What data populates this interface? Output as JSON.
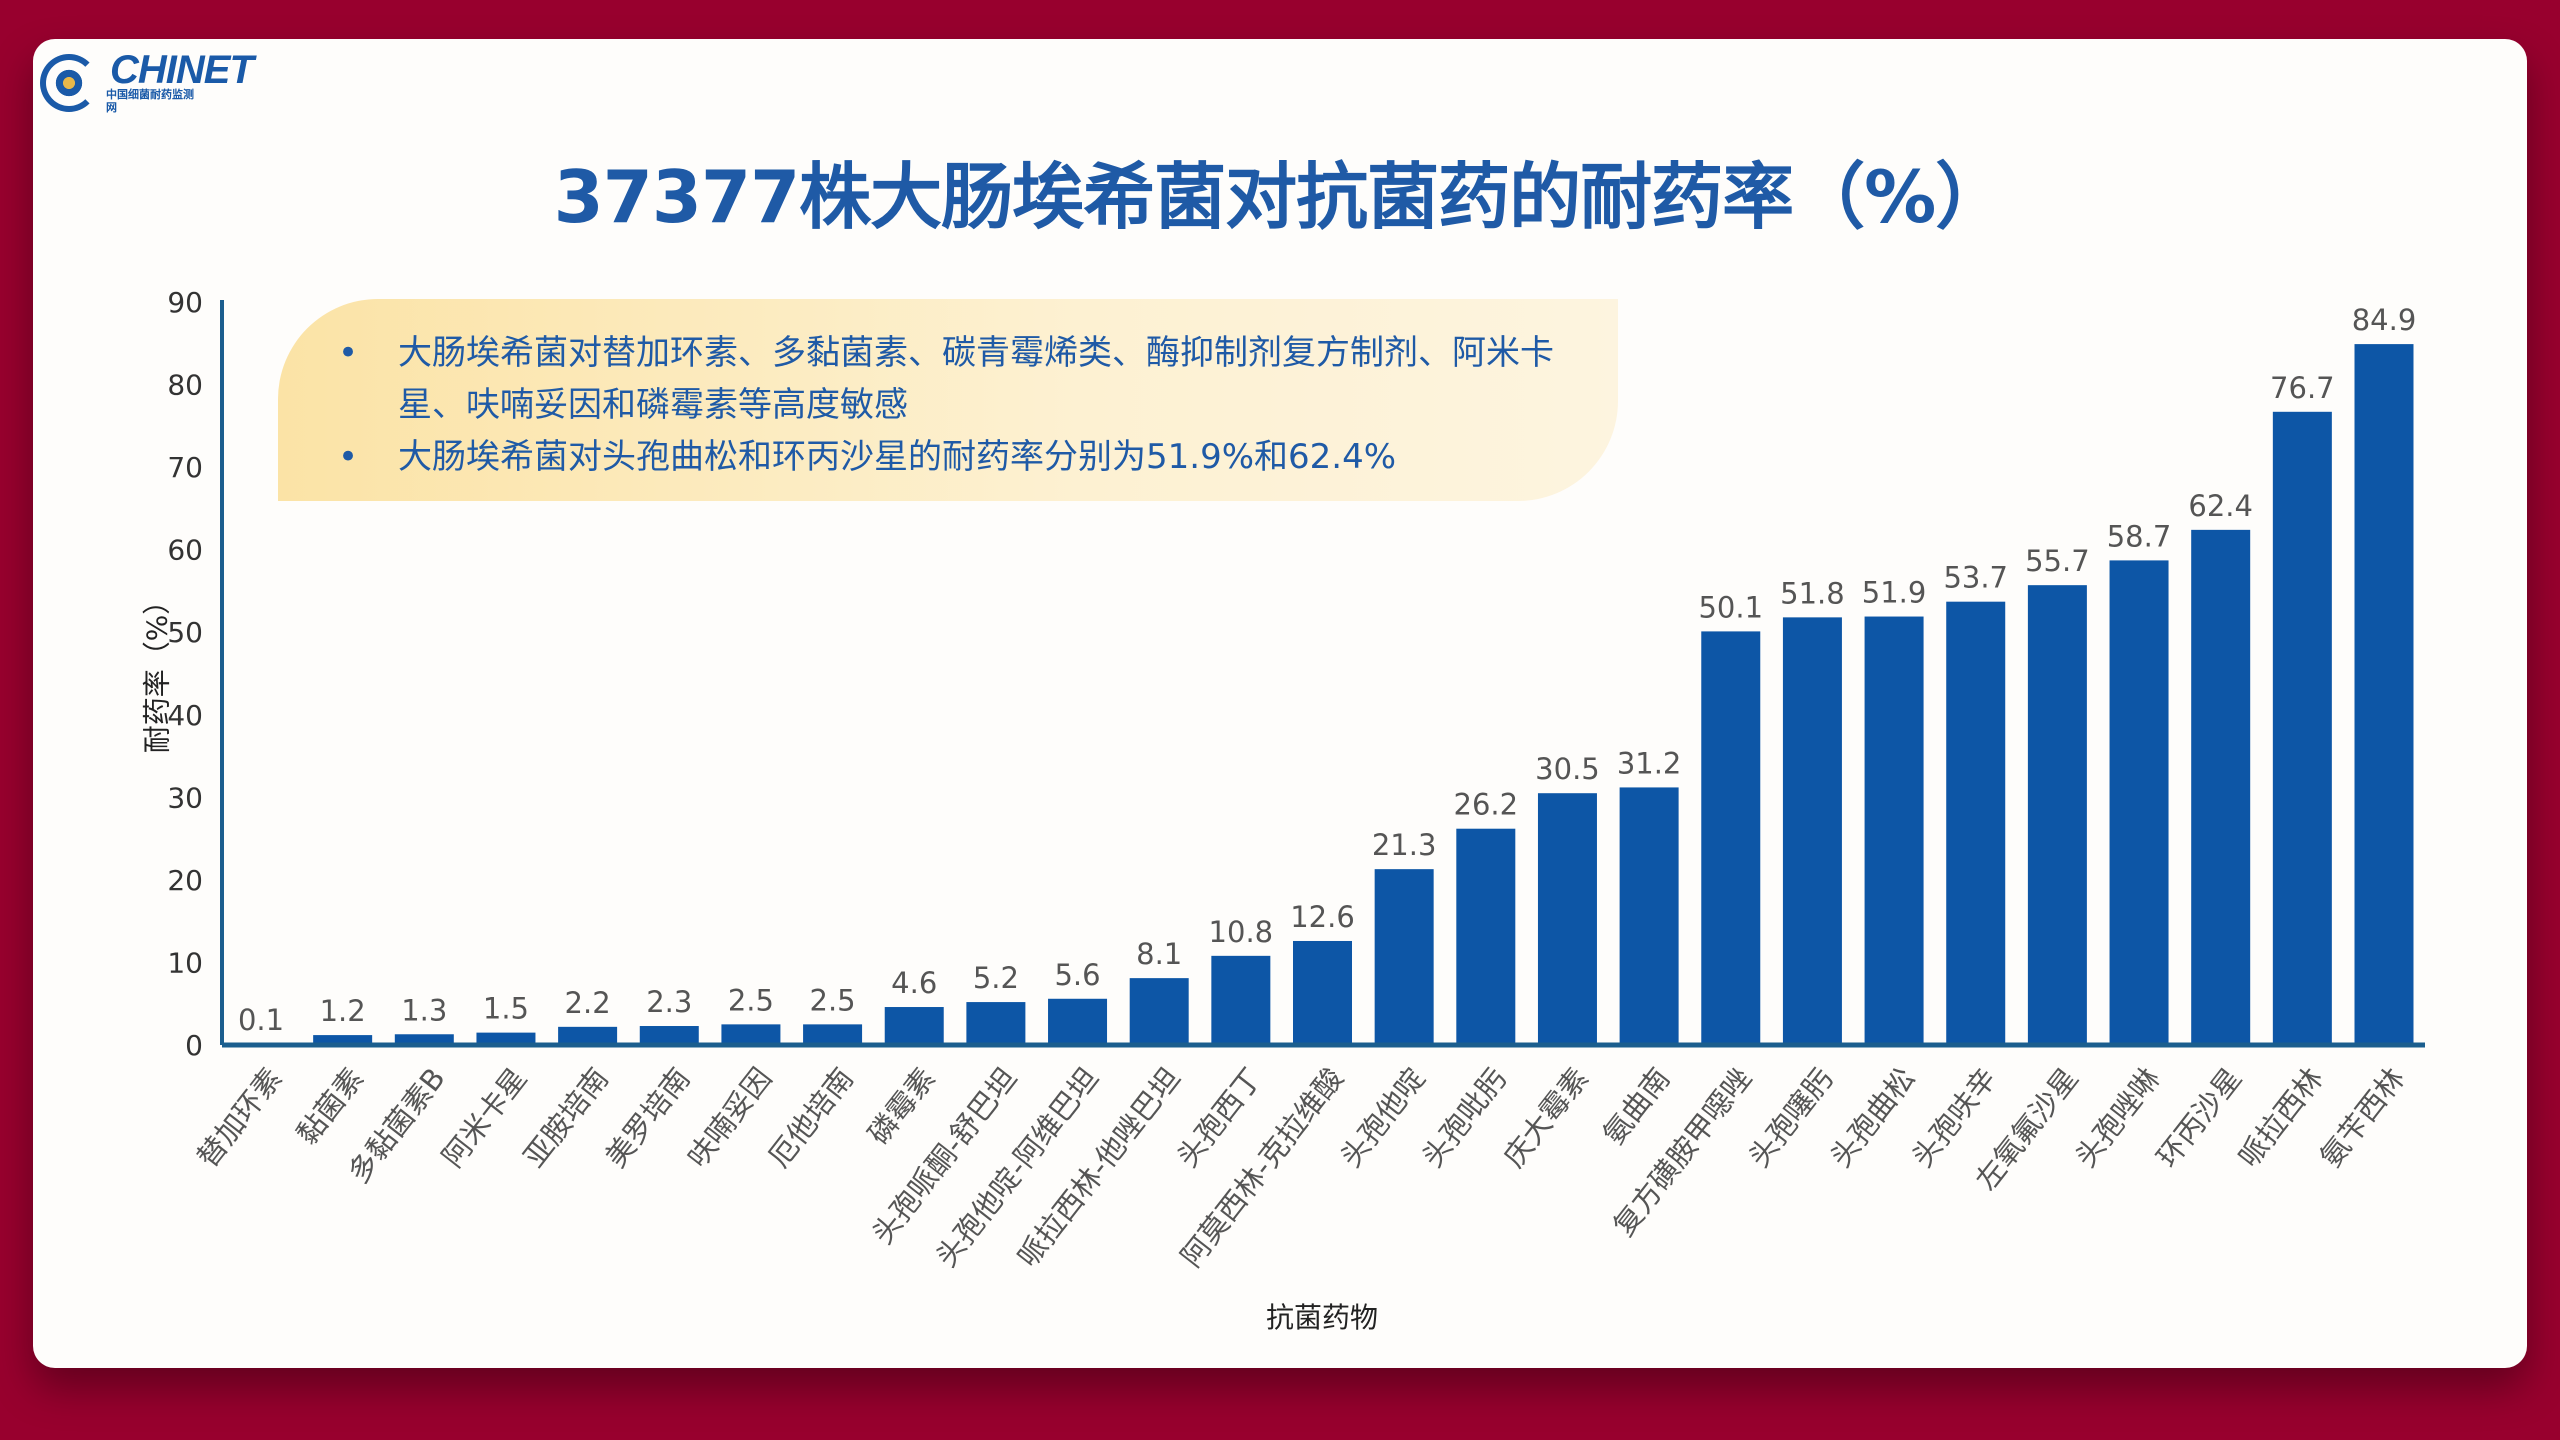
{
  "logo": {
    "text": "CHINET",
    "sub": "中国细菌耐药监测网"
  },
  "colors": {
    "bar": "#0d56a6",
    "axis": "#1b5e8e",
    "label": "#555555"
  },
  "callout": {
    "items": [
      "大肠埃希菌对替加环素、多黏菌素、碳青霉烯类、酶抑制剂复方制剂、阿米卡星、呋喃妥因和磷霉素等高度敏感",
      "大肠埃希菌对头孢曲松和环丙沙星的耐药率分别为51.9%和62.4%"
    ],
    "bullet": "•"
  },
  "chart_data": {
    "type": "bar",
    "title": "37377株大肠埃希菌对抗菌药的耐药率（%）",
    "xlabel": "抗菌药物",
    "ylabel": "耐药率（%）",
    "ylim": [
      0,
      90
    ],
    "yticks": [
      0,
      10,
      20,
      30,
      40,
      50,
      60,
      70,
      80,
      90
    ],
    "categories": [
      "替加环素",
      "黏菌素",
      "多黏菌素B",
      "阿米卡星",
      "亚胺培南",
      "美罗培南",
      "呋喃妥因",
      "厄他培南",
      "磷霉素",
      "头孢哌酮-舒巴坦",
      "头孢他啶-阿维巴坦",
      "哌拉西林-他唑巴坦",
      "头孢西丁",
      "阿莫西林-克拉维酸",
      "头孢他啶",
      "头孢吡肟",
      "庆大霉素",
      "氨曲南",
      "复方磺胺甲噁唑",
      "头孢噻肟",
      "头孢曲松",
      "头孢呋辛",
      "左氧氟沙星",
      "头孢唑啉",
      "环丙沙星",
      "哌拉西林",
      "氨苄西林"
    ],
    "values": [
      0.1,
      1.2,
      1.3,
      1.5,
      2.2,
      2.3,
      2.5,
      2.5,
      4.6,
      5.2,
      5.6,
      8.1,
      10.8,
      12.6,
      21.3,
      26.2,
      30.5,
      31.2,
      50.1,
      51.8,
      51.9,
      53.7,
      55.7,
      58.7,
      62.4,
      76.7,
      84.9
    ],
    "grid": false
  }
}
